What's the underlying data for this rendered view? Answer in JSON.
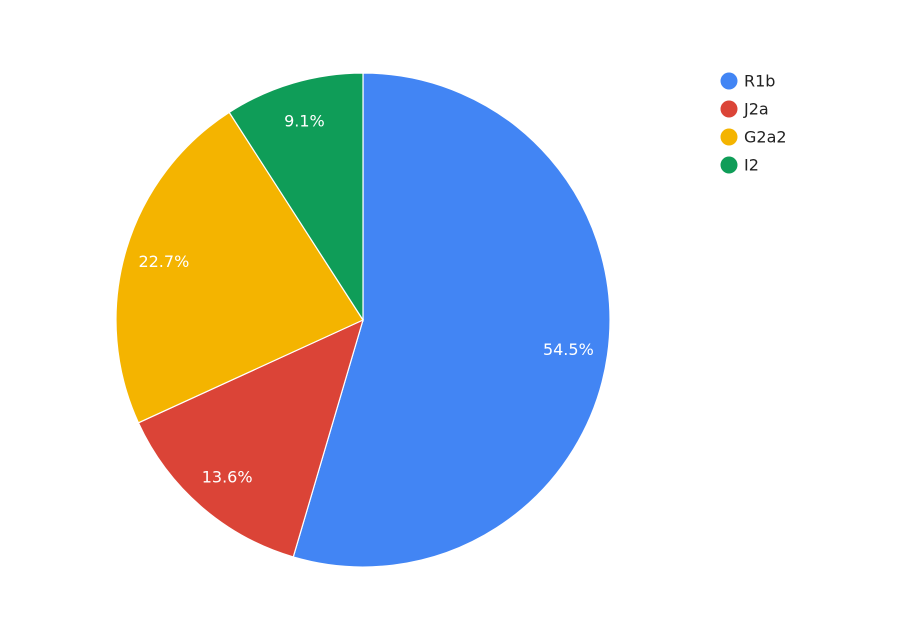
{
  "chart_data": {
    "type": "pie",
    "title": "",
    "categories": [
      "R1b",
      "J2a",
      "G2a2",
      "I2"
    ],
    "values": [
      54.5,
      13.6,
      22.7,
      9.1
    ],
    "labels": [
      "54.5%",
      "13.6%",
      "22.7%",
      "9.1%"
    ],
    "colors": [
      "#4285F4",
      "#DB4437",
      "#F4B400",
      "#0F9D58"
    ],
    "start_angle": "12 o'clock",
    "direction": "clockwise",
    "legend": {
      "placement": "top-right",
      "entries": [
        "R1b",
        "J2a",
        "G2a2",
        "I2"
      ]
    }
  }
}
